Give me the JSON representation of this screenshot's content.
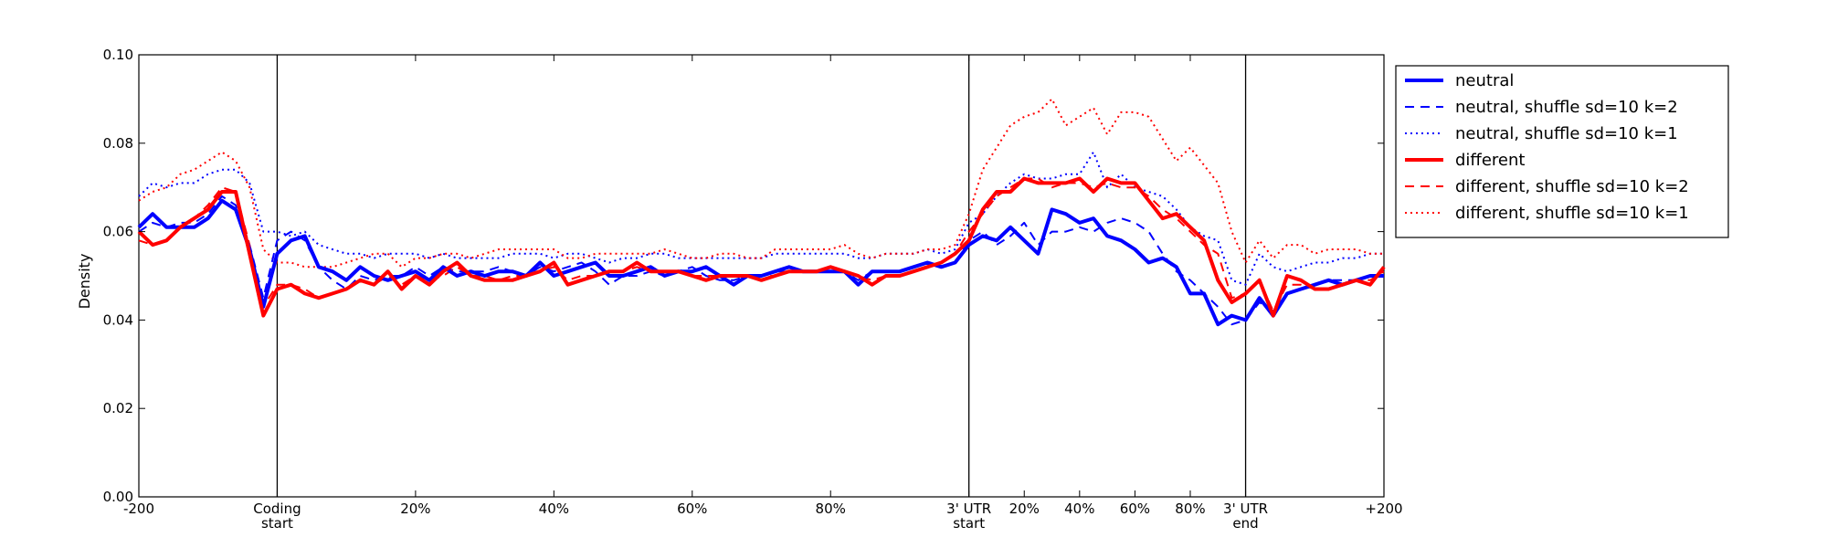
{
  "chart_data": {
    "type": "line",
    "ylabel": "Density",
    "ylim": [
      0.0,
      0.1
    ],
    "y_ticks": [
      "0.00",
      "0.02",
      "0.04",
      "0.06",
      "0.08",
      "0.10"
    ],
    "x_ticks": [
      {
        "pos": 0,
        "label": [
          "-200"
        ]
      },
      {
        "pos": 10,
        "label": [
          "Coding",
          "start"
        ]
      },
      {
        "pos": 20,
        "label": [
          "20%"
        ]
      },
      {
        "pos": 30,
        "label": [
          "40%"
        ]
      },
      {
        "pos": 40,
        "label": [
          "60%"
        ]
      },
      {
        "pos": 50,
        "label": [
          "80%"
        ]
      },
      {
        "pos": 60,
        "label": [
          "3' UTR",
          "start"
        ]
      },
      {
        "pos": 64,
        "label": [
          "20%"
        ]
      },
      {
        "pos": 68,
        "label": [
          "40%"
        ]
      },
      {
        "pos": 72,
        "label": [
          "60%"
        ]
      },
      {
        "pos": 76,
        "label": [
          "80%"
        ]
      },
      {
        "pos": 80,
        "label": [
          "3' UTR",
          "end"
        ]
      },
      {
        "pos": 90,
        "label": [
          "+200"
        ]
      }
    ],
    "region_boundaries": [
      10,
      60,
      80
    ],
    "grid": false,
    "legend_position": "outside-top-right",
    "series": [
      {
        "name": "neutral",
        "color": "#0000ff",
        "style": "solid",
        "width": 4,
        "values": [
          0.061,
          0.064,
          0.061,
          0.061,
          0.061,
          0.063,
          0.067,
          0.065,
          0.056,
          0.043,
          0.055,
          0.058,
          0.059,
          0.052,
          0.051,
          0.049,
          0.052,
          0.05,
          0.049,
          0.05,
          0.051,
          0.049,
          0.052,
          0.05,
          0.051,
          0.05,
          0.051,
          0.051,
          0.05,
          0.053,
          0.05,
          0.051,
          0.052,
          0.053,
          0.05,
          0.05,
          0.051,
          0.052,
          0.05,
          0.051,
          0.051,
          0.052,
          0.05,
          0.048,
          0.05,
          0.05,
          0.051,
          0.052,
          0.051,
          0.051,
          0.051,
          0.051,
          0.048,
          0.051,
          0.051,
          0.051,
          0.052,
          0.053,
          0.052,
          0.053,
          0.057,
          0.059,
          0.058,
          0.061,
          0.058,
          0.055,
          0.065,
          0.064,
          0.062,
          0.063,
          0.059,
          0.058,
          0.056,
          0.053,
          0.054,
          0.052,
          0.046,
          0.046,
          0.039,
          0.041,
          0.04,
          0.045,
          0.041,
          0.046,
          0.047,
          0.048,
          0.049,
          0.048,
          0.049,
          0.05,
          0.05
        ]
      },
      {
        "name": "neutral, shuffle sd=10 k=2",
        "color": "#0000ff",
        "style": "dashed",
        "width": 2,
        "values": [
          0.06,
          0.062,
          0.061,
          0.062,
          0.062,
          0.064,
          0.068,
          0.066,
          0.057,
          0.045,
          0.058,
          0.06,
          0.058,
          0.052,
          0.049,
          0.047,
          0.05,
          0.049,
          0.05,
          0.05,
          0.052,
          0.05,
          0.052,
          0.051,
          0.051,
          0.051,
          0.052,
          0.051,
          0.05,
          0.052,
          0.051,
          0.052,
          0.053,
          0.051,
          0.048,
          0.05,
          0.05,
          0.051,
          0.05,
          0.051,
          0.052,
          0.05,
          0.049,
          0.049,
          0.05,
          0.05,
          0.051,
          0.051,
          0.051,
          0.051,
          0.051,
          0.051,
          0.049,
          0.051,
          0.051,
          0.051,
          0.052,
          0.053,
          0.052,
          0.053,
          0.058,
          0.06,
          0.057,
          0.059,
          0.062,
          0.057,
          0.06,
          0.06,
          0.061,
          0.06,
          0.062,
          0.063,
          0.062,
          0.06,
          0.055,
          0.051,
          0.049,
          0.046,
          0.043,
          0.039,
          0.04,
          0.044,
          0.042,
          0.046,
          0.047,
          0.048,
          0.049,
          0.049,
          0.049,
          0.05,
          0.05
        ]
      },
      {
        "name": "neutral, shuffle sd=10 k=1",
        "color": "#0000ff",
        "style": "dotted",
        "width": 2,
        "values": [
          0.068,
          0.071,
          0.07,
          0.071,
          0.071,
          0.073,
          0.074,
          0.074,
          0.071,
          0.06,
          0.06,
          0.059,
          0.06,
          0.057,
          0.056,
          0.055,
          0.055,
          0.054,
          0.055,
          0.055,
          0.055,
          0.054,
          0.055,
          0.054,
          0.054,
          0.054,
          0.054,
          0.055,
          0.055,
          0.055,
          0.054,
          0.055,
          0.055,
          0.054,
          0.053,
          0.054,
          0.054,
          0.055,
          0.055,
          0.054,
          0.054,
          0.054,
          0.054,
          0.054,
          0.054,
          0.054,
          0.055,
          0.055,
          0.055,
          0.055,
          0.055,
          0.055,
          0.054,
          0.054,
          0.055,
          0.055,
          0.055,
          0.056,
          0.055,
          0.056,
          0.062,
          0.064,
          0.068,
          0.071,
          0.073,
          0.072,
          0.072,
          0.073,
          0.073,
          0.078,
          0.07,
          0.073,
          0.07,
          0.069,
          0.068,
          0.065,
          0.061,
          0.059,
          0.058,
          0.049,
          0.048,
          0.055,
          0.052,
          0.051,
          0.052,
          0.053,
          0.053,
          0.054,
          0.054,
          0.055,
          0.055
        ]
      },
      {
        "name": "different",
        "color": "#ff0000",
        "style": "solid",
        "width": 4,
        "values": [
          0.06,
          0.057,
          0.058,
          0.061,
          0.063,
          0.065,
          0.069,
          0.069,
          0.055,
          0.041,
          0.047,
          0.048,
          0.046,
          0.045,
          0.046,
          0.047,
          0.049,
          0.048,
          0.051,
          0.047,
          0.05,
          0.048,
          0.051,
          0.053,
          0.05,
          0.049,
          0.049,
          0.049,
          0.05,
          0.051,
          0.053,
          0.048,
          0.049,
          0.05,
          0.051,
          0.051,
          0.053,
          0.051,
          0.051,
          0.051,
          0.05,
          0.049,
          0.05,
          0.05,
          0.05,
          0.049,
          0.05,
          0.051,
          0.051,
          0.051,
          0.052,
          0.051,
          0.05,
          0.048,
          0.05,
          0.05,
          0.051,
          0.052,
          0.053,
          0.055,
          0.058,
          0.065,
          0.069,
          0.069,
          0.072,
          0.071,
          0.071,
          0.071,
          0.072,
          0.069,
          0.072,
          0.071,
          0.071,
          0.067,
          0.063,
          0.064,
          0.061,
          0.058,
          0.049,
          0.044,
          0.046,
          0.049,
          0.041,
          0.05,
          0.049,
          0.047,
          0.047,
          0.048,
          0.049,
          0.048,
          0.052
        ]
      },
      {
        "name": "different, shuffle sd=10 k=2",
        "color": "#ff0000",
        "style": "dashed",
        "width": 2,
        "values": [
          0.058,
          0.057,
          0.058,
          0.061,
          0.063,
          0.066,
          0.07,
          0.069,
          0.057,
          0.043,
          0.048,
          0.048,
          0.047,
          0.045,
          0.046,
          0.047,
          0.049,
          0.048,
          0.05,
          0.048,
          0.05,
          0.049,
          0.05,
          0.052,
          0.05,
          0.05,
          0.049,
          0.05,
          0.05,
          0.051,
          0.052,
          0.049,
          0.05,
          0.05,
          0.051,
          0.051,
          0.052,
          0.051,
          0.051,
          0.051,
          0.05,
          0.05,
          0.05,
          0.05,
          0.05,
          0.05,
          0.05,
          0.051,
          0.051,
          0.051,
          0.051,
          0.051,
          0.05,
          0.049,
          0.05,
          0.05,
          0.051,
          0.052,
          0.053,
          0.055,
          0.06,
          0.064,
          0.068,
          0.07,
          0.072,
          0.072,
          0.07,
          0.071,
          0.071,
          0.07,
          0.071,
          0.07,
          0.07,
          0.068,
          0.065,
          0.063,
          0.06,
          0.057,
          0.055,
          0.045,
          0.046,
          0.049,
          0.042,
          0.048,
          0.048,
          0.047,
          0.047,
          0.048,
          0.049,
          0.049,
          0.051
        ]
      },
      {
        "name": "different, shuffle sd=10 k=1",
        "color": "#ff0000",
        "style": "dotted",
        "width": 2,
        "values": [
          0.067,
          0.069,
          0.07,
          0.073,
          0.074,
          0.076,
          0.078,
          0.076,
          0.07,
          0.056,
          0.053,
          0.053,
          0.052,
          0.052,
          0.052,
          0.053,
          0.054,
          0.055,
          0.055,
          0.052,
          0.054,
          0.054,
          0.055,
          0.055,
          0.054,
          0.055,
          0.056,
          0.056,
          0.056,
          0.056,
          0.056,
          0.054,
          0.054,
          0.055,
          0.055,
          0.055,
          0.055,
          0.055,
          0.056,
          0.055,
          0.054,
          0.054,
          0.055,
          0.055,
          0.054,
          0.054,
          0.056,
          0.056,
          0.056,
          0.056,
          0.056,
          0.057,
          0.055,
          0.054,
          0.055,
          0.055,
          0.055,
          0.056,
          0.056,
          0.057,
          0.064,
          0.074,
          0.079,
          0.084,
          0.086,
          0.087,
          0.09,
          0.084,
          0.086,
          0.088,
          0.082,
          0.087,
          0.087,
          0.086,
          0.081,
          0.076,
          0.079,
          0.075,
          0.071,
          0.06,
          0.053,
          0.058,
          0.054,
          0.057,
          0.057,
          0.055,
          0.056,
          0.056,
          0.056,
          0.055,
          0.055
        ]
      }
    ]
  }
}
